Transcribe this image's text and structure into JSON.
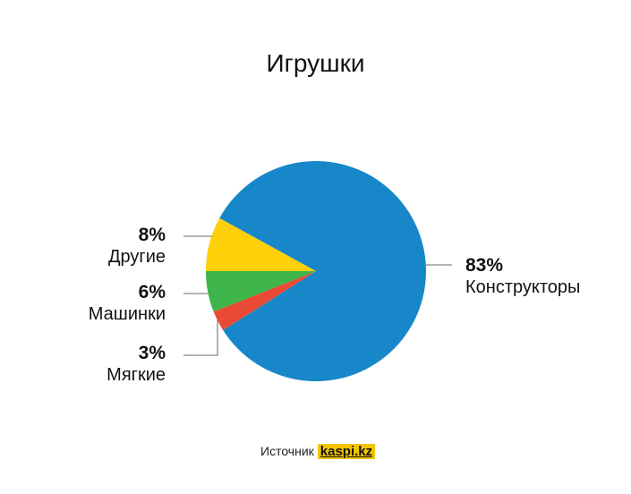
{
  "chart_data": {
    "type": "pie",
    "title": "Игрушки",
    "slices": [
      {
        "label": "Конструкторы",
        "value": 83,
        "display": "83%",
        "color": "#1787c9"
      },
      {
        "label": "Мягкие",
        "value": 3,
        "display": "3%",
        "color": "#ea4a35"
      },
      {
        "label": "Машинки",
        "value": 6,
        "display": "6%",
        "color": "#3db54a"
      },
      {
        "label": "Другие",
        "value": 8,
        "display": "8%",
        "color": "#fdd00a"
      }
    ]
  },
  "source": {
    "label": "Источник",
    "link": "kaspi.kz",
    "link_color": "#f5c400"
  }
}
